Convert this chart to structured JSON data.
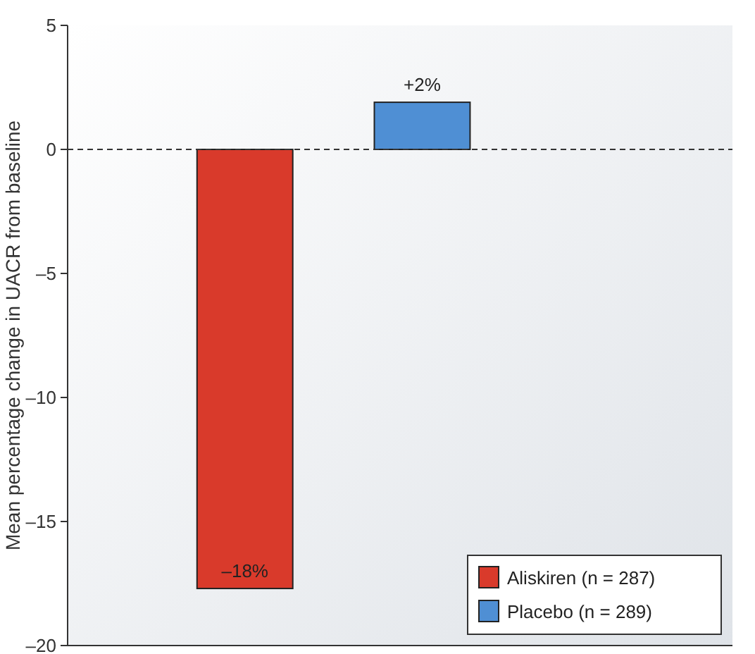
{
  "chart_data": {
    "type": "bar",
    "ylabel": "Mean percentage change in UACR from baseline",
    "categories": [
      null,
      null
    ],
    "series": [
      {
        "name": "Aliskiren (n = 287)",
        "color": "#d93a2b",
        "values": [
          -17.7,
          null
        ],
        "value_labels": [
          "–18%",
          null
        ]
      },
      {
        "name": "Placebo (n = 289)",
        "color": "#4f8fd4",
        "values": [
          null,
          1.9
        ],
        "value_labels": [
          null,
          "+2%"
        ]
      }
    ],
    "ylim": [
      -20,
      5
    ],
    "yticks": [
      5,
      0,
      {
        "value": -5,
        "label": "–5"
      },
      {
        "value": -10,
        "label": "–10"
      },
      {
        "value": -15,
        "label": "–15"
      },
      {
        "value": -20,
        "label": "–20"
      }
    ],
    "ref_lines": [
      {
        "axis": "y",
        "value": 0,
        "line_style": "dashed",
        "color": "#333333"
      }
    ],
    "legend": "bottom right"
  }
}
